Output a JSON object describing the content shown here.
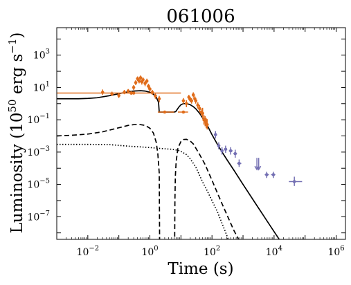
{
  "chart_data": {
    "type": "scatter",
    "title": "061006",
    "xlabel": "Time (s)",
    "ylabel_parts": [
      "Luminosity (10",
      "50",
      " erg s",
      "−1",
      ")"
    ],
    "xscale": "log",
    "yscale": "log",
    "xlim_log10": [
      -3,
      6.3
    ],
    "ylim_log10": [
      -8.4,
      4.7
    ],
    "x_ticks_log10": [
      -2,
      0,
      2,
      4,
      6
    ],
    "y_ticks_log10": [
      -7,
      -5,
      -3,
      -1,
      1,
      3
    ],
    "legend": "none",
    "grid": false,
    "colors": {
      "bat": "#e06c1a",
      "xrt": "#7470b3",
      "model": "#000000"
    },
    "series": [
      {
        "style": "errorbar",
        "color_key": "bat",
        "points": [
          {
            "x": 0.3,
            "y": 4.5,
            "x_lo": 0.001,
            "x_hi": 10,
            "y_lo": 4.0,
            "y_hi": 5.0
          },
          {
            "x": 0.03,
            "y": 5.0,
            "y_lo": 3.5,
            "y_hi": 7.5
          },
          {
            "x": 0.06,
            "y": 4.0,
            "y_lo": 3.0,
            "y_hi": 5.5
          },
          {
            "x": 0.1,
            "y": 3.2,
            "y_lo": 2.2,
            "y_hi": 4.5
          },
          {
            "x": 0.15,
            "y": 5.0,
            "y_lo": 3.8,
            "y_hi": 7.0
          },
          {
            "x": 0.2,
            "y": 6.0,
            "y_lo": 4.5,
            "y_hi": 8.0
          },
          {
            "x": 0.25,
            "y": 4.5,
            "y_lo": 3.5,
            "y_hi": 6.0
          },
          {
            "x": 0.3,
            "y": 10.0,
            "y_lo": 7.0,
            "y_hi": 14.0
          },
          {
            "x": 0.35,
            "y": 20.0,
            "y_lo": 14.0,
            "y_hi": 28.0
          },
          {
            "x": 0.4,
            "y": 35.0,
            "y_lo": 25.0,
            "y_hi": 48.0
          },
          {
            "x": 0.45,
            "y": 25.0,
            "y_lo": 18.0,
            "y_hi": 35.0
          },
          {
            "x": 0.5,
            "y": 40.0,
            "y_lo": 28.0,
            "y_hi": 55.0
          },
          {
            "x": 0.55,
            "y": 22.0,
            "y_lo": 15.0,
            "y_hi": 30.0
          },
          {
            "x": 0.6,
            "y": 30.0,
            "y_lo": 21.0,
            "y_hi": 42.0
          },
          {
            "x": 0.7,
            "y": 18.0,
            "y_lo": 12.0,
            "y_hi": 25.0
          },
          {
            "x": 0.8,
            "y": 25.0,
            "y_lo": 18.0,
            "y_hi": 35.0
          },
          {
            "x": 0.9,
            "y": 12.0,
            "y_lo": 8.0,
            "y_hi": 17.0
          },
          {
            "x": 1.0,
            "y": 8.0,
            "y_lo": 5.5,
            "y_hi": 11.0
          },
          {
            "x": 1.2,
            "y": 5.0,
            "y_lo": 3.5,
            "y_hi": 7.0
          },
          {
            "x": 1.5,
            "y": 3.0,
            "y_lo": 2.0,
            "y_hi": 4.2
          },
          {
            "x": 2.0,
            "y": 2.0,
            "y_lo": 1.2,
            "y_hi": 3.0
          },
          {
            "x": 3.0,
            "y": 0.3,
            "x_lo": 1.8,
            "x_hi": 6.0,
            "y_lo": 0.25,
            "y_hi": 0.36
          },
          {
            "x": 12.0,
            "y": 0.3,
            "x_lo": 8.0,
            "x_hi": 17.0,
            "y_lo": 0.25,
            "y_hi": 0.36
          },
          {
            "x": 12.0,
            "y": 1.5,
            "y_lo": 1.0,
            "y_hi": 2.2
          },
          {
            "x": 15.0,
            "y": 1.0,
            "y_lo": 0.6,
            "y_hi": 1.6
          },
          {
            "x": 18.0,
            "y": 2.5,
            "y_lo": 1.7,
            "y_hi": 3.5
          },
          {
            "x": 20.0,
            "y": 1.8,
            "y_lo": 1.2,
            "y_hi": 2.6
          },
          {
            "x": 22.0,
            "y": 1.5,
            "y_lo": 1.0,
            "y_hi": 2.2
          },
          {
            "x": 25.0,
            "y": 3.5,
            "y_lo": 2.4,
            "y_hi": 5.0
          },
          {
            "x": 28.0,
            "y": 2.0,
            "y_lo": 1.3,
            "y_hi": 3.0
          },
          {
            "x": 30.0,
            "y": 1.5,
            "y_lo": 1.0,
            "y_hi": 2.2
          },
          {
            "x": 35.0,
            "y": 0.8,
            "y_lo": 0.5,
            "y_hi": 1.2
          },
          {
            "x": 40.0,
            "y": 0.5,
            "y_lo": 0.3,
            "y_hi": 0.8
          },
          {
            "x": 45.0,
            "y": 0.3,
            "y_lo": 0.18,
            "y_hi": 0.5
          },
          {
            "x": 50.0,
            "y": 0.25,
            "y_lo": 0.12,
            "y_hi": 0.55
          },
          {
            "x": 55.0,
            "y": 0.1,
            "y_lo": 0.05,
            "y_hi": 0.2
          },
          {
            "x": 60.0,
            "y": 0.08,
            "y_lo": 0.04,
            "y_hi": 0.17
          },
          {
            "x": 65.0,
            "y": 0.06,
            "y_lo": 0.03,
            "y_hi": 0.13
          },
          {
            "x": 70.0,
            "y": 0.05,
            "y_lo": 0.025,
            "y_hi": 0.11
          }
        ]
      },
      {
        "style": "errorbar",
        "color_key": "xrt",
        "points": [
          {
            "x": 130,
            "y": 0.012,
            "x_lo": 115,
            "x_hi": 145,
            "y_lo": 0.007,
            "y_hi": 0.02
          },
          {
            "x": 165,
            "y": 0.0025,
            "x_lo": 150,
            "x_hi": 185,
            "y_lo": 0.0015,
            "y_hi": 0.004
          },
          {
            "x": 210,
            "y": 0.0012,
            "x_lo": 190,
            "x_hi": 235,
            "y_lo": 0.0007,
            "y_hi": 0.002
          },
          {
            "x": 275,
            "y": 0.0015,
            "x_lo": 245,
            "x_hi": 310,
            "y_lo": 0.0009,
            "y_hi": 0.0025
          },
          {
            "x": 400,
            "y": 0.0012,
            "x_lo": 350,
            "x_hi": 460,
            "y_lo": 0.0007,
            "y_hi": 0.002
          },
          {
            "x": 560,
            "y": 0.0008,
            "x_lo": 490,
            "x_hi": 640,
            "y_lo": 0.00045,
            "y_hi": 0.0014
          },
          {
            "x": 750,
            "y": 0.0002,
            "x_lo": 650,
            "x_hi": 880,
            "y_lo": 0.00012,
            "y_hi": 0.00035
          },
          {
            "x": 5800,
            "y": 4e-05,
            "x_lo": 5000,
            "x_hi": 6800,
            "y_lo": 2.5e-05,
            "y_hi": 6e-05
          },
          {
            "x": 9500,
            "y": 4e-05,
            "x_lo": 8000,
            "x_hi": 11000,
            "y_lo": 2.5e-05,
            "y_hi": 6e-05
          },
          {
            "x": 45000,
            "y": 1.5e-05,
            "x_lo": 30000,
            "x_hi": 80000,
            "y_lo": 8e-06,
            "y_hi": 3e-05
          }
        ]
      },
      {
        "style": "upper_limit",
        "color_key": "xrt",
        "points": [
          {
            "x": 2800,
            "y": 0.0002
          },
          {
            "x": 3200,
            "y": 0.0002
          }
        ]
      },
      {
        "style": "solid",
        "color_key": "model",
        "x": [
          0.001,
          0.002,
          0.005,
          0.01,
          0.02,
          0.05,
          0.1,
          0.2,
          0.3,
          0.5,
          0.7,
          1.0,
          1.3,
          1.6,
          1.9,
          2.0,
          3.0,
          5.0,
          6.0,
          6.8,
          7.0,
          8.5,
          10,
          12,
          14,
          16,
          20,
          25,
          30,
          40,
          60,
          80,
          100,
          150,
          200,
          300,
          500,
          1000,
          3000,
          10000,
          30000,
          60000
        ],
        "y": [
          2.0,
          2.0,
          2.0,
          2.1,
          2.3,
          3.1,
          4.1,
          5.4,
          6.0,
          6.3,
          6.0,
          5.0,
          3.8,
          2.5,
          1.2,
          0.3,
          0.3,
          0.3,
          0.3,
          0.32,
          0.35,
          0.6,
          0.85,
          1.0,
          1.0,
          0.98,
          0.85,
          0.65,
          0.48,
          0.25,
          0.075,
          0.028,
          0.012,
          0.003,
          0.0012,
          0.00035,
          8e-05,
          1e-05,
          4e-07,
          1.2e-08,
          5e-10,
          5e-11
        ]
      },
      {
        "style": "dashed",
        "color_key": "model",
        "x": [
          0.001,
          0.003,
          0.01,
          0.03,
          0.1,
          0.2,
          0.3,
          0.5,
          0.7,
          1.0,
          1.3,
          1.6,
          1.8,
          2.0,
          2.05,
          2.1
        ],
        "y": [
          0.01,
          0.011,
          0.013,
          0.018,
          0.032,
          0.045,
          0.05,
          0.05,
          0.045,
          0.03,
          0.015,
          0.004,
          0.0008,
          5e-05,
          1e-08,
          1e-12
        ]
      },
      {
        "style": "dashed",
        "color_key": "model",
        "x": [
          6.2,
          6.3,
          6.4,
          6.6,
          7.0,
          8.0,
          10,
          12,
          15,
          20,
          25,
          30,
          40,
          60,
          100,
          200,
          500,
          1000
        ],
        "y": [
          1e-12,
          1e-08,
          1e-06,
          3e-05,
          0.00025,
          0.0018,
          0.0045,
          0.006,
          0.0062,
          0.0048,
          0.0032,
          0.0018,
          0.0007,
          0.00017,
          1.8e-05,
          8e-07,
          1.5e-08,
          1.2e-09
        ]
      },
      {
        "style": "dotted",
        "color_key": "model",
        "x": [
          0.001,
          0.01,
          0.05,
          0.1,
          0.3,
          0.5,
          1.0,
          2.0,
          3.0,
          5.0,
          8.0,
          10,
          15,
          20,
          30,
          50,
          70,
          100,
          150,
          200,
          300,
          500
        ],
        "y": [
          0.003,
          0.003,
          0.0029,
          0.0026,
          0.0022,
          0.0021,
          0.0019,
          0.0017,
          0.0016,
          0.0015,
          0.0013,
          0.0011,
          0.0007,
          0.00038,
          0.00012,
          1.4e-05,
          4e-06,
          1e-06,
          2e-07,
          5e-08,
          7e-09,
          5e-10
        ]
      }
    ]
  }
}
